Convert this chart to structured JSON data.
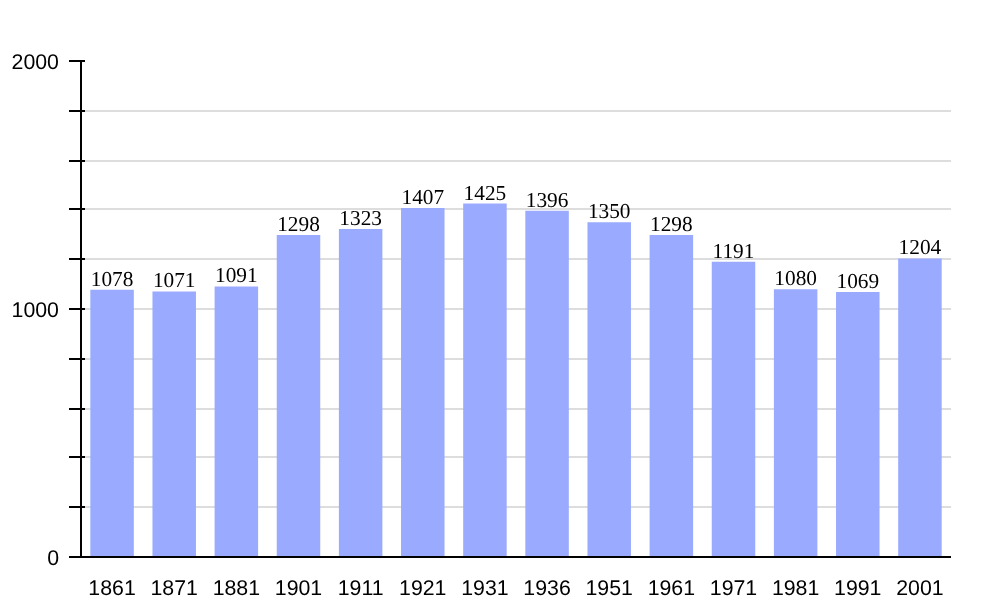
{
  "chart_data": {
    "type": "bar",
    "categories": [
      "1861",
      "1871",
      "1881",
      "1901",
      "1911",
      "1921",
      "1931",
      "1936",
      "1951",
      "1961",
      "1971",
      "1981",
      "1991",
      "2001"
    ],
    "values": [
      1078,
      1071,
      1091,
      1298,
      1323,
      1407,
      1425,
      1396,
      1350,
      1298,
      1191,
      1080,
      1069,
      1204
    ],
    "color": "#99aaff",
    "data_labels": true,
    "grid": "y",
    "ylim": [
      0,
      2000
    ],
    "yticks": [
      0,
      {
        "value": 200,
        "label": null
      },
      {
        "value": 400,
        "label": null
      },
      {
        "value": 600,
        "label": null
      },
      {
        "value": 800,
        "label": null
      },
      1000,
      {
        "value": 1200,
        "label": null
      },
      {
        "value": 1400,
        "label": null
      },
      {
        "value": 1600,
        "label": null
      },
      {
        "value": 1800,
        "label": null
      },
      2000
    ]
  }
}
